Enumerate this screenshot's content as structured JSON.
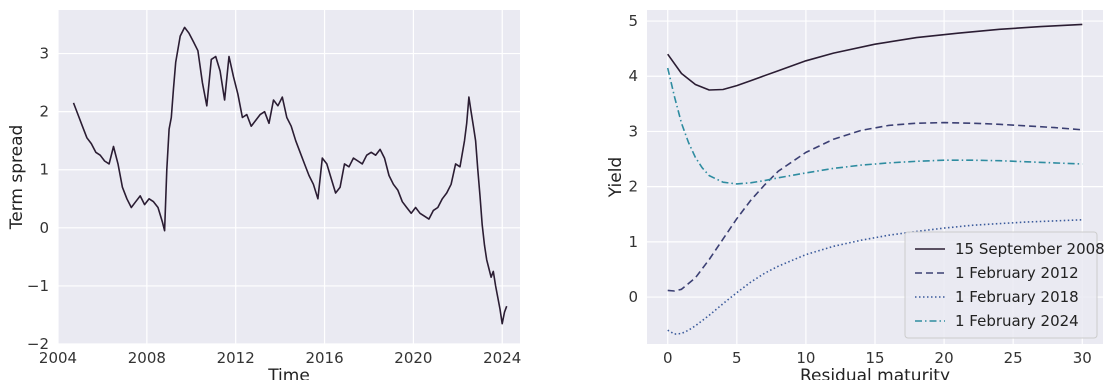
{
  "chart_data": [
    {
      "type": "line",
      "title": "",
      "xlabel": "Time",
      "ylabel": "Term spread",
      "xlim": [
        2004.0,
        2024.8
      ],
      "ylim": [
        -2.0,
        3.75
      ],
      "grid": true,
      "x_ticks": [
        2004,
        2008,
        2012,
        2016,
        2020,
        2024
      ],
      "x_tick_labels": [
        "2004",
        "2008",
        "2012",
        "2016",
        "2020",
        "2024"
      ],
      "y_ticks": [
        -2,
        -1,
        0,
        1,
        2,
        3
      ],
      "y_tick_labels": [
        "−2",
        "−1",
        "0",
        "1",
        "2",
        "3"
      ],
      "colors": {
        "line": "#2b1d33",
        "background": "#eaeaf2",
        "grid": "#ffffff"
      },
      "series": [
        {
          "x": [
            2004.7,
            2004.9,
            2005.1,
            2005.3,
            2005.5,
            2005.7,
            2005.9,
            2006.1,
            2006.3,
            2006.5,
            2006.7,
            2006.9,
            2007.1,
            2007.3,
            2007.5,
            2007.7,
            2007.9,
            2008.1,
            2008.3,
            2008.5,
            2008.7,
            2008.8,
            2008.9,
            2009.0,
            2009.1,
            2009.2,
            2009.3,
            2009.5,
            2009.7,
            2009.9,
            2010.1,
            2010.3,
            2010.5,
            2010.7,
            2010.9,
            2011.1,
            2011.3,
            2011.5,
            2011.7,
            2011.9,
            2012.1,
            2012.3,
            2012.5,
            2012.7,
            2012.9,
            2013.1,
            2013.3,
            2013.5,
            2013.7,
            2013.9,
            2014.1,
            2014.3,
            2014.5,
            2014.7,
            2014.9,
            2015.1,
            2015.3,
            2015.5,
            2015.7,
            2015.9,
            2016.1,
            2016.3,
            2016.5,
            2016.7,
            2016.9,
            2017.1,
            2017.3,
            2017.5,
            2017.7,
            2017.9,
            2018.1,
            2018.3,
            2018.5,
            2018.7,
            2018.9,
            2019.1,
            2019.3,
            2019.5,
            2019.7,
            2019.9,
            2020.1,
            2020.3,
            2020.5,
            2020.7,
            2020.9,
            2021.1,
            2021.3,
            2021.5,
            2021.7,
            2021.9,
            2022.1,
            2022.3,
            2022.4,
            2022.5,
            2022.6,
            2022.7,
            2022.8,
            2022.9,
            2023.0,
            2023.1,
            2023.2,
            2023.3,
            2023.4,
            2023.5,
            2023.6,
            2023.7,
            2023.8,
            2023.9,
            2024.0,
            2024.1,
            2024.2
          ],
          "y": [
            2.15,
            1.95,
            1.75,
            1.55,
            1.45,
            1.3,
            1.25,
            1.15,
            1.1,
            1.4,
            1.1,
            0.7,
            0.5,
            0.35,
            0.45,
            0.55,
            0.4,
            0.5,
            0.45,
            0.35,
            0.1,
            -0.05,
            1.0,
            1.7,
            1.9,
            2.4,
            2.85,
            3.3,
            3.45,
            3.35,
            3.2,
            3.05,
            2.5,
            2.1,
            2.9,
            2.95,
            2.7,
            2.2,
            2.95,
            2.6,
            2.3,
            1.9,
            1.95,
            1.75,
            1.85,
            1.95,
            2.0,
            1.8,
            2.2,
            2.1,
            2.25,
            1.9,
            1.75,
            1.5,
            1.3,
            1.1,
            0.9,
            0.75,
            0.5,
            1.2,
            1.1,
            0.85,
            0.6,
            0.7,
            1.1,
            1.05,
            1.2,
            1.15,
            1.1,
            1.25,
            1.3,
            1.25,
            1.35,
            1.2,
            0.9,
            0.75,
            0.65,
            0.45,
            0.35,
            0.25,
            0.35,
            0.25,
            0.2,
            0.15,
            0.3,
            0.35,
            0.5,
            0.6,
            0.75,
            1.1,
            1.05,
            1.5,
            1.8,
            2.25,
            2.0,
            1.75,
            1.5,
            1.0,
            0.55,
            0.05,
            -0.3,
            -0.55,
            -0.7,
            -0.85,
            -0.75,
            -1.0,
            -1.2,
            -1.4,
            -1.65,
            -1.45,
            -1.35
          ]
        }
      ]
    },
    {
      "type": "line",
      "title": "",
      "xlabel": "Residual maturity",
      "ylabel": "Yield",
      "xlim": [
        -1.5,
        31.5
      ],
      "ylim": [
        -0.85,
        5.2
      ],
      "grid": true,
      "x_ticks": [
        0,
        5,
        10,
        15,
        20,
        25,
        30
      ],
      "x_tick_labels": [
        "0",
        "5",
        "10",
        "15",
        "20",
        "25",
        "30"
      ],
      "y_ticks": [
        0,
        1,
        2,
        3,
        4,
        5
      ],
      "y_tick_labels": [
        "0",
        "1",
        "2",
        "3",
        "4",
        "5"
      ],
      "legend_position": "lower-right",
      "colors": {
        "background": "#eaeaf2",
        "grid": "#ffffff"
      },
      "series": [
        {
          "name": "15 September 2008",
          "style": "solid",
          "color": "#2b1d33",
          "x": [
            0,
            1,
            2,
            3,
            4,
            5,
            6,
            8,
            10,
            12,
            15,
            18,
            21,
            24,
            27,
            30
          ],
          "y": [
            4.4,
            4.05,
            3.85,
            3.75,
            3.76,
            3.83,
            3.92,
            4.1,
            4.28,
            4.42,
            4.58,
            4.7,
            4.78,
            4.85,
            4.9,
            4.94
          ]
        },
        {
          "name": "1 February 2012",
          "style": "dashed",
          "color": "#3b3f73",
          "x": [
            0,
            0.5,
            1,
            2,
            3,
            4,
            5,
            6,
            7,
            8,
            10,
            12,
            14,
            16,
            18,
            20,
            22,
            24,
            26,
            28,
            30
          ],
          "y": [
            0.12,
            0.11,
            0.14,
            0.35,
            0.68,
            1.05,
            1.42,
            1.75,
            2.03,
            2.28,
            2.62,
            2.86,
            3.02,
            3.11,
            3.15,
            3.16,
            3.15,
            3.13,
            3.1,
            3.07,
            3.03
          ]
        },
        {
          "name": "1 February 2018",
          "style": "dotted",
          "color": "#3a5a9b",
          "x": [
            0,
            0.5,
            1,
            1.5,
            2,
            3,
            4,
            5,
            6,
            7,
            8,
            10,
            12,
            14,
            16,
            18,
            20,
            22,
            24,
            26,
            28,
            30
          ],
          "y": [
            -0.6,
            -0.67,
            -0.66,
            -0.6,
            -0.52,
            -0.33,
            -0.12,
            0.08,
            0.27,
            0.43,
            0.56,
            0.77,
            0.92,
            1.03,
            1.12,
            1.19,
            1.25,
            1.3,
            1.33,
            1.36,
            1.38,
            1.4
          ]
        },
        {
          "name": "1 February 2024",
          "style": "dashdot",
          "color": "#2e8ca0",
          "x": [
            0,
            0.5,
            1,
            1.5,
            2,
            2.5,
            3,
            4,
            5,
            6,
            7,
            8,
            10,
            12,
            14,
            16,
            18,
            20,
            22,
            24,
            26,
            28,
            30
          ],
          "y": [
            4.15,
            3.62,
            3.15,
            2.8,
            2.53,
            2.34,
            2.2,
            2.08,
            2.05,
            2.07,
            2.11,
            2.16,
            2.25,
            2.33,
            2.39,
            2.43,
            2.46,
            2.48,
            2.48,
            2.47,
            2.45,
            2.43,
            2.41
          ]
        }
      ]
    }
  ]
}
